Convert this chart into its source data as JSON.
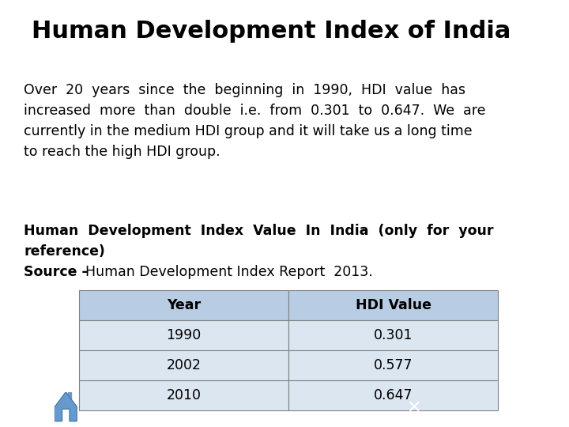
{
  "title": "Human Development Index of India",
  "title_fontsize": 22,
  "title_fontweight": "bold",
  "body_line1": "Over  20  years  since  the  beginning  in  1990,  HDI  value  has",
  "body_line2": "increased  more  than  double  i.e.  from  0.301  to  0.647.  We  are",
  "body_line3": "currently in the medium HDI group and it will take us a long time",
  "body_line4": "to reach the high HDI group.",
  "body_fontsize": 12.5,
  "bold_line1": "Human  Development  Index  Value  In  India  (only  for  your",
  "bold_line2": "reference)",
  "bold_fontsize": 12.5,
  "source_bold": "Source – ",
  "source_normal": "Human Development Index Report  2013.",
  "source_fontsize": 12.5,
  "table_headers": [
    "Year",
    "HDI Value"
  ],
  "table_rows": [
    [
      "1990",
      "0.301"
    ],
    [
      "2002",
      "0.577"
    ],
    [
      "2010",
      "0.647"
    ]
  ],
  "table_header_bg": "#b8cce4",
  "table_row_bg": "#dce6f1",
  "table_border_color": "#808080",
  "table_fontsize": 12.5,
  "bg_color": "#ffffff",
  "text_color": "#000000"
}
